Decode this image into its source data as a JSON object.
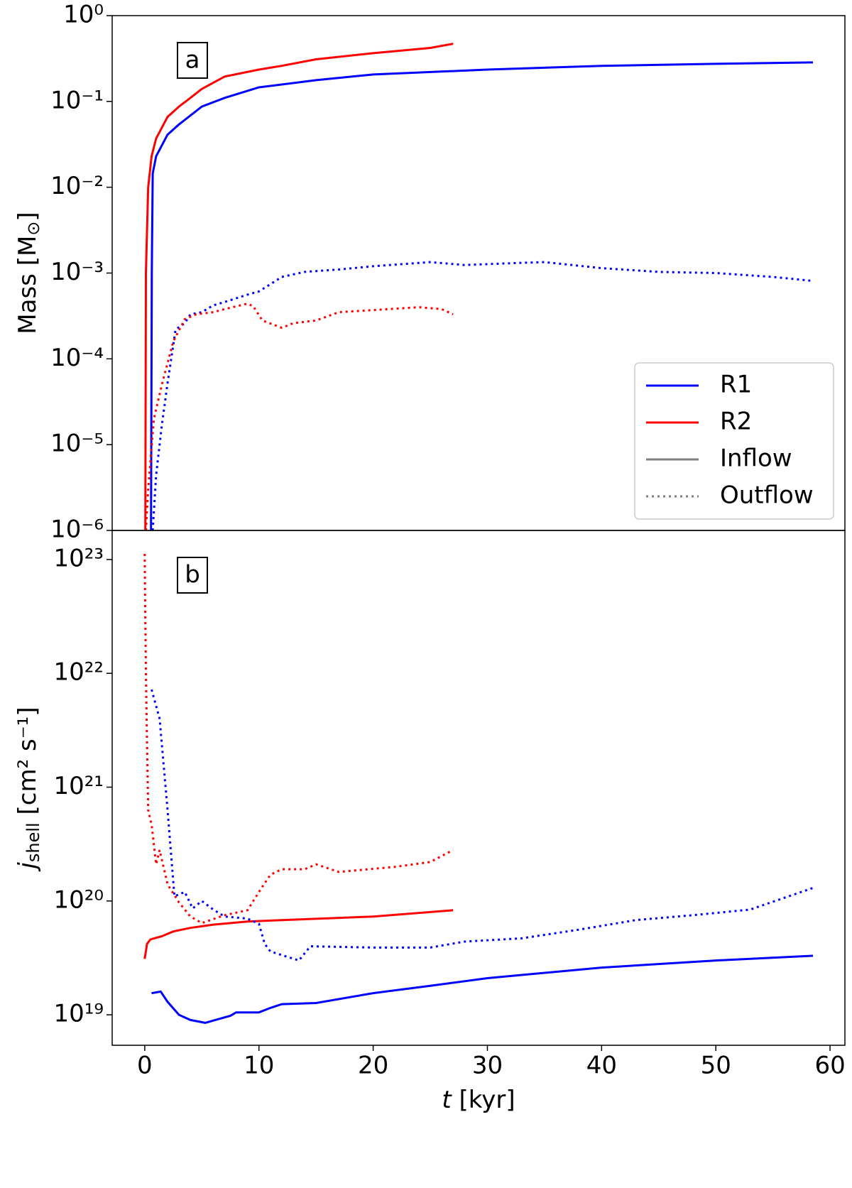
{
  "chart_data": [
    {
      "type": "line",
      "panel_label": "a",
      "log_y": true,
      "ylabel": [
        "Mass [M",
        "⊙",
        "]"
      ],
      "xlim": [
        -2.85,
        61.3
      ],
      "ylim": [
        1e-06,
        1
      ],
      "yticks": [
        {
          "value": 1e-06,
          "label": "10⁻⁶"
        },
        {
          "value": 1e-05,
          "label": "10⁻⁵"
        },
        {
          "value": 0.0001,
          "label": "10⁻⁴"
        },
        {
          "value": 0.001,
          "label": "10⁻³"
        },
        {
          "value": 0.01,
          "label": "10⁻²"
        },
        {
          "value": 0.1,
          "label": "10⁻¹"
        },
        {
          "value": 1,
          "label": "10⁰"
        }
      ],
      "legend_loc": "lower right",
      "legend": [
        {
          "name": "R1",
          "color": "#0000ff",
          "dash": "solid"
        },
        {
          "name": "R2",
          "color": "#ff0000",
          "dash": "solid"
        },
        {
          "name": "Inflow",
          "color": "#808080",
          "dash": "solid"
        },
        {
          "name": "Outflow",
          "color": "#808080",
          "dash": "dotted"
        }
      ],
      "series": [
        {
          "color": "#0000ff",
          "dash": "solid",
          "x": [
            0.55,
            0.62,
            0.7,
            1,
            2,
            3,
            5,
            7,
            10,
            15,
            20,
            30,
            40,
            50,
            58.5
          ],
          "values": [
            1e-06,
            0.001,
            0.0144,
            0.023,
            0.041,
            0.054,
            0.087,
            0.11,
            0.146,
            0.177,
            0.206,
            0.235,
            0.26,
            0.274,
            0.285
          ]
        },
        {
          "color": "#ff0000",
          "dash": "solid",
          "x": [
            0.05,
            0.1,
            0.3,
            0.6,
            1,
            2,
            3,
            4,
            5,
            7,
            10,
            12,
            15,
            20,
            25,
            27
          ],
          "values": [
            1e-06,
            0.001,
            0.01,
            0.023,
            0.037,
            0.066,
            0.087,
            0.11,
            0.14,
            0.195,
            0.235,
            0.26,
            0.31,
            0.365,
            0.42,
            0.47
          ]
        },
        {
          "color": "#0000ff",
          "dash": "dotted",
          "x": [
            0.7,
            1,
            1.5,
            2,
            2.7,
            3.5,
            4,
            5,
            6,
            7,
            9,
            10,
            12,
            14,
            17,
            20,
            25,
            28,
            32,
            35,
            40,
            45,
            50,
            55,
            58.5
          ],
          "values": [
            1e-06,
            4.4e-06,
            1.7e-05,
            5.2e-05,
            0.00022,
            0.00026,
            0.00033,
            0.00035,
            0.00042,
            0.00046,
            0.00056,
            0.00061,
            0.0009,
            0.00103,
            0.0011,
            0.0012,
            0.00134,
            0.00124,
            0.0013,
            0.00134,
            0.00114,
            0.00103,
            0.001,
            0.0009,
            0.00081
          ]
        },
        {
          "color": "#ff0000",
          "dash": "dotted",
          "x": [
            0.1,
            0.3,
            0.8,
            1.5,
            2.5,
            3.5,
            4.5,
            6,
            7,
            9,
            9.5,
            10.3,
            12,
            13,
            15,
            17,
            20,
            24,
            26,
            27
          ],
          "values": [
            1e-06,
            3e-06,
            2e-05,
            5e-05,
            0.00016,
            0.00029,
            0.00033,
            0.00035,
            0.00038,
            0.00044,
            0.00041,
            0.00028,
            0.00023,
            0.00026,
            0.00028,
            0.00035,
            0.00037,
            0.0004,
            0.00038,
            0.00033
          ]
        }
      ]
    },
    {
      "type": "line",
      "panel_label": "b",
      "log_y": true,
      "ylabel": [
        "j",
        "shell",
        " [cm² s⁻¹]"
      ],
      "xlabel": [
        "t",
        " [kyr]"
      ],
      "xlim": [
        -2.85,
        61.3
      ],
      "ylim": [
        5.4e+18,
        1.8e+23
      ],
      "xticks": [
        0,
        10,
        20,
        30,
        40,
        50,
        60
      ],
      "yticks": [
        {
          "value": 1e+19,
          "label": "10¹⁹"
        },
        {
          "value": 1e+20,
          "label": "10²⁰"
        },
        {
          "value": 1e+21,
          "label": "10²¹"
        },
        {
          "value": 1e+22,
          "label": "10²²"
        },
        {
          "value": 1e+23,
          "label": "10²³"
        }
      ],
      "series": [
        {
          "color": "#0000ff",
          "dash": "solid",
          "x": [
            0.6,
            1.4,
            2,
            3,
            4,
            5.3,
            6.5,
            7.5,
            8,
            10,
            11,
            12,
            15,
            20,
            25,
            30,
            40,
            50,
            58.5
          ],
          "values": [
            1.55e+19,
            1.6e+19,
            1.3e+19,
            1e+19,
            9e+18,
            8.5e+18,
            9.2e+18,
            9.8e+18,
            1.05e+19,
            1.05e+19,
            1.15e+19,
            1.24e+19,
            1.27e+19,
            1.55e+19,
            1.8e+19,
            2.1e+19,
            2.6e+19,
            3e+19,
            3.3e+19
          ]
        },
        {
          "color": "#ff0000",
          "dash": "solid",
          "x": [
            0,
            0.2,
            0.5,
            1.5,
            2.5,
            4,
            6,
            9,
            12,
            20,
            27
          ],
          "values": [
            3.1e+19,
            4.2e+19,
            4.6e+19,
            4.9e+19,
            5.4e+19,
            5.8e+19,
            6.2e+19,
            6.6e+19,
            6.8e+19,
            7.3e+19,
            8.3e+19
          ]
        },
        {
          "color": "#0000ff",
          "dash": "dotted",
          "x": [
            0.6,
            1.3,
            2,
            2.6,
            3.5,
            4.2,
            5,
            6,
            7,
            9,
            10,
            10.5,
            11,
            13.5,
            14.5,
            20,
            25,
            28,
            33,
            38,
            43,
            48,
            53,
            58.5
          ],
          "values": [
            7.2e+21,
            4e+21,
            6.3e+20,
            1.1e+20,
            1.2e+20,
            8.6e+19,
            1e+20,
            8.4e+19,
            7.3e+19,
            7e+19,
            6.3e+19,
            4.2e+19,
            3.6e+19,
            3e+19,
            4e+19,
            3.9e+19,
            3.9e+19,
            4.4e+19,
            4.7e+19,
            5.6e+19,
            6.8e+19,
            7.5e+19,
            8.4e+19,
            1.3e+20
          ]
        },
        {
          "color": "#ff0000",
          "dash": "dotted",
          "x": [
            0,
            0.1,
            0.3,
            0.6,
            1,
            1.3,
            2,
            3,
            4,
            5,
            7,
            9,
            10,
            11,
            12,
            14,
            15,
            17,
            22,
            25,
            27
          ],
          "values": [
            1.12e+23,
            9.7e+21,
            6.3e+20,
            4.7e+20,
            2.1e+20,
            2.8e+20,
            1.4e+20,
            9.7e+19,
            7.3e+19,
            6.4e+19,
            7.5e+19,
            8.3e+19,
            1.2e+20,
            1.7e+20,
            1.9e+20,
            1.9e+20,
            2.1e+20,
            1.8e+20,
            2e+20,
            2.2e+20,
            2.8e+20
          ]
        }
      ]
    }
  ]
}
